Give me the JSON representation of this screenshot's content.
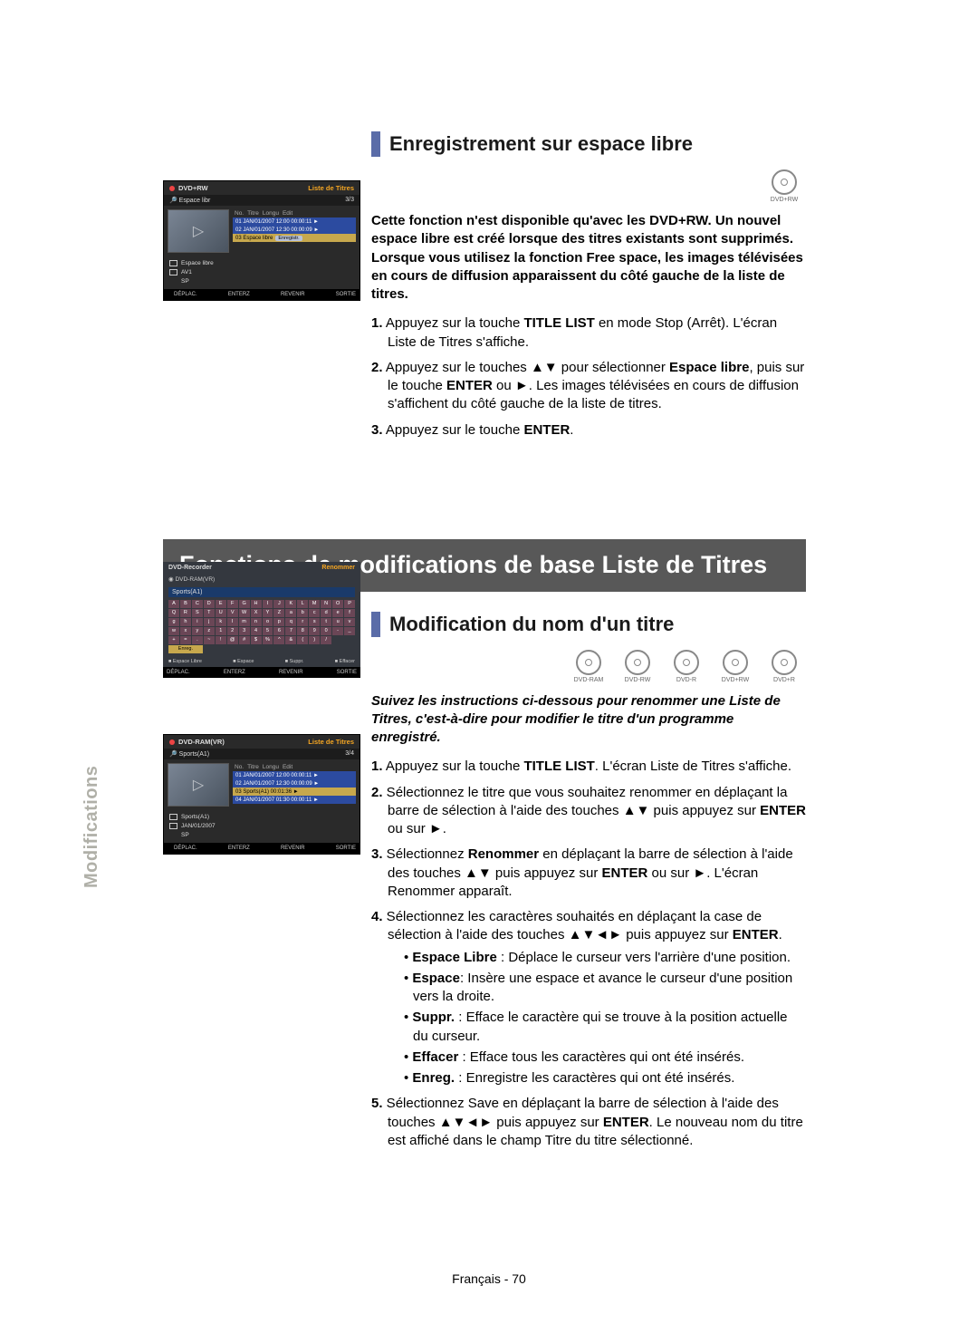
{
  "side_label": "Modifications",
  "footer": "Français - 70",
  "section1": {
    "heading": "Enregistrement sur espace libre",
    "disc_icons": [
      "DVD+RW"
    ],
    "intro": "Cette fonction n'est disponible qu'avec les DVD+RW. Un nouvel espace libre est créé lorsque des titres existants sont supprimés. Lorsque vous utilisez la fonction Free space, les images télévisées en cours de diffusion apparaissent du côté gauche de la liste de titres.",
    "steps": [
      {
        "n": "1.",
        "text": "Appuyez sur la touche <b>TITLE LIST</b> en mode Stop (Arrêt). L'écran Liste de Titres s'affiche."
      },
      {
        "n": "2.",
        "text": "Appuyez sur le touches ▲▼ pour sélectionner <b>Espace libre</b>, puis sur le touche <b>ENTER</b> ou ►. Les images télévisées en cours de diffusion s'affichent du côté gauche de la liste de titres."
      },
      {
        "n": "3.",
        "text": "Appuyez sur le touche <b>ENTER</b>."
      }
    ]
  },
  "main_title": "Fonctions de modifications de base Liste de Titres",
  "section2": {
    "heading": "Modification du nom d'un titre",
    "disc_icons": [
      "DVD-RAM",
      "DVD-RW",
      "DVD-R",
      "DVD+RW",
      "DVD+R"
    ],
    "intro": "Suivez les instructions ci-dessous pour renommer une Liste de Titres, c'est-à-dire pour modifier le titre d'un programme enregistré.",
    "steps": [
      {
        "n": "1.",
        "text": "Appuyez sur la touche <b>TITLE LIST</b>. L'écran Liste de Titres s'affiche."
      },
      {
        "n": "2.",
        "text": "Sélectionnez le titre que vous souhaitez renommer en déplaçant la barre de sélection à l'aide des touches ▲▼ puis appuyez sur <b>ENTER</b> ou sur ►."
      },
      {
        "n": "3.",
        "text": "Sélectionnez <b>Renommer</b> en déplaçant la barre de sélection à l'aide des touches ▲▼ puis appuyez sur <b>ENTER</b> ou sur ►. L'écran Renommer apparaît."
      },
      {
        "n": "4.",
        "text": "Sélectionnez les caractères souhaités en déplaçant la case de sélection à l'aide des touches ▲▼◄► puis appuyez sur <b>ENTER</b>.",
        "sub": [
          "<b>Espace Libre</b> : Déplace le curseur vers l'arrière d'une position.",
          "<b>Espace</b>: Insère une espace et avance le curseur d'une position vers la droite.",
          "<b>Suppr.</b> : Efface le caractère qui se trouve à la position actuelle du curseur.",
          "<b>Effacer</b> : Efface tous les caractères qui ont été insérés.",
          "<b>Enreg.</b> : Enregistre les caractères qui ont été insérés."
        ]
      },
      {
        "n": "5.",
        "text": "Sélectionnez Save en déplaçant la barre de sélection à l'aide des touches ▲▼◄► puis appuyez sur <b>ENTER</b>. Le nouveau nom du titre est affiché dans le champ Titre du titre sélectionné."
      }
    ]
  },
  "panel1": {
    "head_left": "DVD+RW",
    "head_right": "Liste de Titres",
    "sub_left": "Espace libr",
    "sub_right": "3/3",
    "list_header": [
      "No.",
      "Titre",
      "Longu",
      "Edit"
    ],
    "rows": [
      {
        "class": "blue",
        "text": "01 JAN/01/2007 12:00  00:00:11 ►"
      },
      {
        "class": "blue",
        "text": "02 JAN/01/2007 12:30  00:00:09 ►"
      },
      {
        "class": "yellow",
        "text": "03 Espace libre",
        "btn": "Enregistr."
      }
    ],
    "meta": [
      {
        "icon": true,
        "text": "Espace libre"
      },
      {
        "icon": true,
        "text": "AV1"
      },
      {
        "icon": false,
        "text": "SP"
      }
    ],
    "hints": [
      "DÉPLAC.",
      "ENTERZ",
      "REVENIR",
      "SORTIE"
    ]
  },
  "panel2": {
    "head_left": "DVD-Recorder",
    "head_right": "Renommer",
    "disc": "DVD-RAM(VR)",
    "input": "Sports(A1)",
    "keys": [
      "A",
      "B",
      "C",
      "D",
      "E",
      "F",
      "G",
      "H",
      "I",
      "J",
      "K",
      "L",
      "M",
      "N",
      "O",
      "P",
      "Q",
      "R",
      "S",
      "T",
      "U",
      "V",
      "W",
      "X",
      "Y",
      "Z",
      "a",
      "b",
      "c",
      "d",
      "e",
      "f",
      "g",
      "h",
      "i",
      "j",
      "k",
      "l",
      "m",
      "n",
      "o",
      "p",
      "q",
      "r",
      "s",
      "t",
      "u",
      "v",
      "w",
      "x",
      "y",
      "z",
      "1",
      "2",
      "3",
      "4",
      "5",
      "6",
      "7",
      "8",
      "9",
      "0",
      "-",
      "_",
      "+",
      "=",
      ".",
      "~",
      "!",
      "@",
      "#",
      "$",
      "%",
      "^",
      "&",
      "(",
      ")",
      "/"
    ],
    "save": "Enreg.",
    "legend": [
      "Espace Libre",
      "Espace",
      "Suppr.",
      "Effacer"
    ],
    "hints": [
      "DÉPLAC.",
      "ENTERZ",
      "REVENIR",
      "SORTIE"
    ]
  },
  "panel3": {
    "head_left": "DVD-RAM(VR)",
    "head_right": "Liste de Titres",
    "sub_left": "Sports(A1)",
    "sub_right": "3/4",
    "list_header": [
      "No.",
      "Titre",
      "Longu",
      "Edit"
    ],
    "rows": [
      {
        "class": "blue",
        "text": "01 JAN/01/2007 12:00  00:00:11 ►"
      },
      {
        "class": "blue",
        "text": "02 JAN/01/2007 12:30  00:00:09 ►"
      },
      {
        "class": "yellow",
        "text": "03 Sports(A1)           00:01:36 ►"
      },
      {
        "class": "blue",
        "text": "04 JAN/01/2007 01:30  00:00:11 ►"
      }
    ],
    "meta": [
      {
        "icon": true,
        "text": "Sports(A1)"
      },
      {
        "icon": true,
        "text": "JAN/01/2007"
      },
      {
        "icon": false,
        "text": "SP"
      }
    ],
    "hints": [
      "DÉPLAC.",
      "ENTERZ",
      "REVENIR",
      "SORTIE"
    ]
  }
}
